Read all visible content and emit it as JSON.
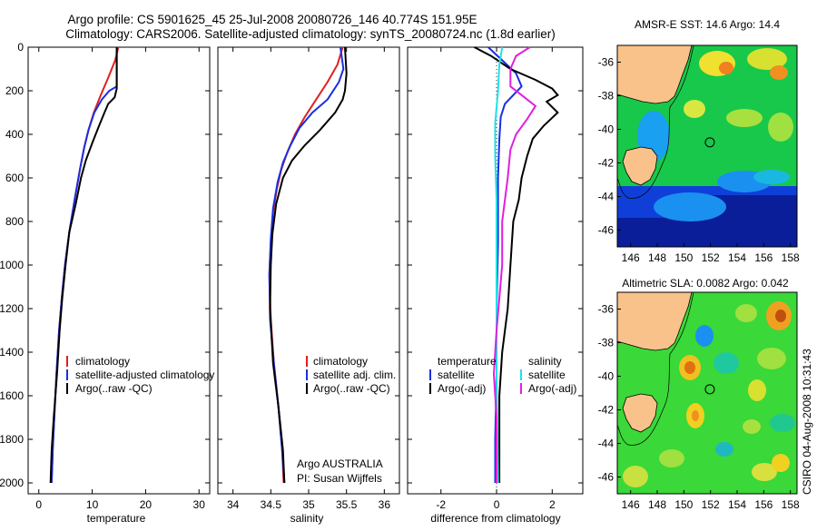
{
  "title_line1": "Argo profile: CS 5901625_45 25-Jul-2008 20080726_146 40.774S 151.95E",
  "title_line2": "Climatology: CARS2006. Satellite-adjusted climatology: synTS_20080724.nc (1.8d earlier)",
  "credit": "CSIRO 04-Aug-2008 10:31:43",
  "colors": {
    "red": "#e02020",
    "blue": "#1a2fe0",
    "black": "#000000",
    "cyan": "#20e0e8",
    "magenta": "#e020e0"
  },
  "depth_ticks": [
    "0",
    "200",
    "400",
    "600",
    "800",
    "1000",
    "1200",
    "1400",
    "1600",
    "1800",
    "2000"
  ],
  "chart_data": [
    {
      "type": "line",
      "id": "temperature",
      "xlabel": "temperature",
      "xlim": [
        -2,
        32
      ],
      "ylim": [
        2050,
        0
      ],
      "xticks": [
        "0",
        "10",
        "20",
        "30"
      ],
      "legend": [
        {
          "label": "climatology",
          "color": "red"
        },
        {
          "label": "satellite-adjusted climatology",
          "color": "blue"
        },
        {
          "label": "Argo(..raw -QC)",
          "color": "black"
        }
      ],
      "series": [
        {
          "name": "climatology",
          "color": "red",
          "points": [
            [
              14.9,
              0
            ],
            [
              14.3,
              60
            ],
            [
              13.0,
              140
            ],
            [
              11.6,
              220
            ],
            [
              10.3,
              300
            ],
            [
              9.3,
              380
            ],
            [
              8.5,
              460
            ],
            [
              7.7,
              560
            ],
            [
              6.7,
              700
            ],
            [
              5.7,
              850
            ],
            [
              4.9,
              1000
            ],
            [
              4.3,
              1150
            ],
            [
              3.8,
              1300
            ],
            [
              3.3,
              1500
            ],
            [
              2.9,
              1700
            ],
            [
              2.6,
              1850
            ],
            [
              2.4,
              2000
            ]
          ]
        },
        {
          "name": "satellite-adjusted climatology",
          "color": "blue",
          "points": [
            [
              14.6,
              0
            ],
            [
              14.6,
              180
            ],
            [
              13.2,
              200
            ],
            [
              11.8,
              240
            ],
            [
              10.4,
              300
            ],
            [
              9.3,
              380
            ],
            [
              8.5,
              460
            ],
            [
              7.7,
              560
            ],
            [
              6.7,
              700
            ],
            [
              5.7,
              850
            ],
            [
              4.9,
              1000
            ],
            [
              4.3,
              1150
            ],
            [
              3.8,
              1300
            ],
            [
              3.3,
              1500
            ],
            [
              2.9,
              1700
            ],
            [
              2.6,
              1850
            ],
            [
              2.4,
              2000
            ]
          ]
        },
        {
          "name": "Argo(..raw -QC)",
          "color": "black",
          "points": [
            [
              14.6,
              0
            ],
            [
              14.6,
              190
            ],
            [
              14.2,
              230
            ],
            [
              13.0,
              260
            ],
            [
              12.3,
              300
            ],
            [
              11.3,
              360
            ],
            [
              10.0,
              440
            ],
            [
              8.8,
              520
            ],
            [
              7.9,
              600
            ],
            [
              6.9,
              720
            ],
            [
              5.7,
              850
            ],
            [
              5.0,
              1000
            ],
            [
              4.4,
              1150
            ],
            [
              3.9,
              1300
            ],
            [
              3.4,
              1500
            ],
            [
              2.8,
              1700
            ],
            [
              2.4,
              1850
            ],
            [
              2.2,
              2000
            ]
          ]
        }
      ]
    },
    {
      "type": "line",
      "id": "salinity",
      "xlabel": "salinity",
      "xlim": [
        33.8,
        36.2
      ],
      "ylim": [
        2050,
        0
      ],
      "xticks": [
        "34",
        "34.5",
        "35",
        "35.5",
        "36"
      ],
      "legend": [
        {
          "label": "climatology",
          "color": "red"
        },
        {
          "label": "satellite adj. clim.",
          "color": "blue"
        },
        {
          "label": "Argo(..raw -QC)",
          "color": "black"
        }
      ],
      "annotation": [
        "Argo AUSTRALIA",
        "PI: Susan Wijffels"
      ],
      "series": [
        {
          "name": "climatology",
          "color": "red",
          "points": [
            [
              35.45,
              0
            ],
            [
              35.38,
              80
            ],
            [
              35.25,
              160
            ],
            [
              35.1,
              240
            ],
            [
              34.95,
              320
            ],
            [
              34.82,
              400
            ],
            [
              34.72,
              480
            ],
            [
              34.64,
              560
            ],
            [
              34.58,
              650
            ],
            [
              34.53,
              760
            ],
            [
              34.5,
              900
            ],
            [
              34.48,
              1050
            ],
            [
              34.5,
              1250
            ],
            [
              34.54,
              1450
            ],
            [
              34.6,
              1650
            ],
            [
              34.65,
              1850
            ],
            [
              34.67,
              2000
            ]
          ]
        },
        {
          "name": "satellite adj. clim.",
          "color": "blue",
          "points": [
            [
              35.42,
              0
            ],
            [
              35.46,
              100
            ],
            [
              35.4,
              160
            ],
            [
              35.25,
              240
            ],
            [
              35.05,
              300
            ],
            [
              34.88,
              370
            ],
            [
              34.76,
              450
            ],
            [
              34.66,
              530
            ],
            [
              34.59,
              620
            ],
            [
              34.53,
              740
            ],
            [
              34.5,
              880
            ],
            [
              34.48,
              1040
            ],
            [
              34.49,
              1250
            ],
            [
              34.54,
              1450
            ],
            [
              34.6,
              1650
            ],
            [
              34.65,
              1850
            ],
            [
              34.68,
              2000
            ]
          ]
        },
        {
          "name": "Argo(..raw -QC)",
          "color": "black",
          "points": [
            [
              35.48,
              0
            ],
            [
              35.5,
              120
            ],
            [
              35.48,
              200
            ],
            [
              35.45,
              240
            ],
            [
              35.35,
              300
            ],
            [
              35.15,
              380
            ],
            [
              34.95,
              450
            ],
            [
              34.78,
              520
            ],
            [
              34.66,
              600
            ],
            [
              34.57,
              720
            ],
            [
              34.52,
              860
            ],
            [
              34.5,
              1000
            ],
            [
              34.49,
              1200
            ],
            [
              34.53,
              1450
            ],
            [
              34.6,
              1650
            ],
            [
              34.66,
              1850
            ],
            [
              34.68,
              2000
            ]
          ]
        }
      ]
    },
    {
      "type": "line",
      "id": "difference",
      "xlabel": "difference from climatology",
      "xlim": [
        -3.2,
        3.1
      ],
      "ylim": [
        2050,
        0
      ],
      "xticks": [
        "-2",
        "0",
        "2"
      ],
      "legend_left_title": "temperature",
      "legend_right_title": "salinity",
      "legend": [
        {
          "label": "satellite",
          "color": "blue"
        },
        {
          "label": "Argo(-adj)",
          "color": "black"
        },
        {
          "label": "satellite",
          "color": "cyan"
        },
        {
          "label": "Argo(-adj)",
          "color": "magenta"
        }
      ],
      "series": [
        {
          "name": "temperature satellite",
          "color": "blue",
          "points": [
            [
              -0.3,
              0
            ],
            [
              0.2,
              60
            ],
            [
              0.7,
              120
            ],
            [
              0.9,
              180
            ],
            [
              0.6,
              220
            ],
            [
              0.3,
              260
            ],
            [
              0.15,
              320
            ],
            [
              0.1,
              420
            ],
            [
              0.05,
              600
            ],
            [
              0.05,
              900
            ],
            [
              0.0,
              1200
            ],
            [
              0.0,
              1500
            ],
            [
              -0.05,
              1800
            ],
            [
              -0.05,
              2000
            ]
          ]
        },
        {
          "name": "temperature Argo(-adj)",
          "color": "black",
          "points": [
            [
              -0.8,
              0
            ],
            [
              -0.2,
              40
            ],
            [
              0.5,
              100
            ],
            [
              1.4,
              150
            ],
            [
              2.0,
              190
            ],
            [
              2.2,
              220
            ],
            [
              1.8,
              250
            ],
            [
              2.2,
              300
            ],
            [
              1.7,
              360
            ],
            [
              1.3,
              420
            ],
            [
              1.1,
              500
            ],
            [
              0.9,
              600
            ],
            [
              0.8,
              700
            ],
            [
              0.6,
              800
            ],
            [
              0.5,
              1000
            ],
            [
              0.4,
              1200
            ],
            [
              0.2,
              1400
            ],
            [
              0.1,
              1600
            ],
            [
              0.1,
              1800
            ],
            [
              0.1,
              2000
            ]
          ]
        },
        {
          "name": "salinity satellite",
          "color": "cyan",
          "points": [
            [
              0.2,
              0
            ],
            [
              0.1,
              80
            ],
            [
              0.05,
              200
            ],
            [
              -0.05,
              350
            ],
            [
              -0.05,
              500
            ],
            [
              0.0,
              700
            ],
            [
              0.0,
              1000
            ],
            [
              0.0,
              1500
            ],
            [
              0.05,
              2000
            ]
          ]
        },
        {
          "name": "salinity Argo(-adj)",
          "color": "magenta",
          "points": [
            [
              1.2,
              0
            ],
            [
              0.7,
              40
            ],
            [
              0.5,
              100
            ],
            [
              0.5,
              180
            ],
            [
              1.0,
              230
            ],
            [
              1.4,
              270
            ],
            [
              1.1,
              330
            ],
            [
              0.7,
              400
            ],
            [
              0.5,
              470
            ],
            [
              0.4,
              600
            ],
            [
              0.2,
              800
            ],
            [
              0.2,
              1000
            ],
            [
              0.1,
              1150
            ],
            [
              0.0,
              1300
            ],
            [
              -0.1,
              1500
            ],
            [
              0.0,
              1700
            ],
            [
              0.0,
              2000
            ]
          ]
        }
      ]
    },
    {
      "type": "heatmap",
      "id": "sst-map",
      "title": "AMSR-E SST: 14.6 Argo: 14.4",
      "xlim": [
        145,
        158.5
      ],
      "ylim": [
        -47,
        -35
      ],
      "xticks": [
        "146",
        "148",
        "150",
        "152",
        "154",
        "156",
        "158"
      ],
      "yticks": [
        "-36",
        "-38",
        "-40",
        "-42",
        "-44",
        "-46"
      ],
      "argo_position": [
        151.95,
        -40.774
      ]
    },
    {
      "type": "heatmap",
      "id": "sla-map",
      "title": "Altimetric SLA: 0.0082 Argo: 0.042",
      "xlim": [
        145,
        158.5
      ],
      "ylim": [
        -47,
        -35
      ],
      "xticks": [
        "146",
        "148",
        "150",
        "152",
        "154",
        "156",
        "158"
      ],
      "yticks": [
        "-36",
        "-38",
        "-40",
        "-42",
        "-44",
        "-46"
      ],
      "argo_position": [
        151.95,
        -40.774
      ]
    }
  ]
}
